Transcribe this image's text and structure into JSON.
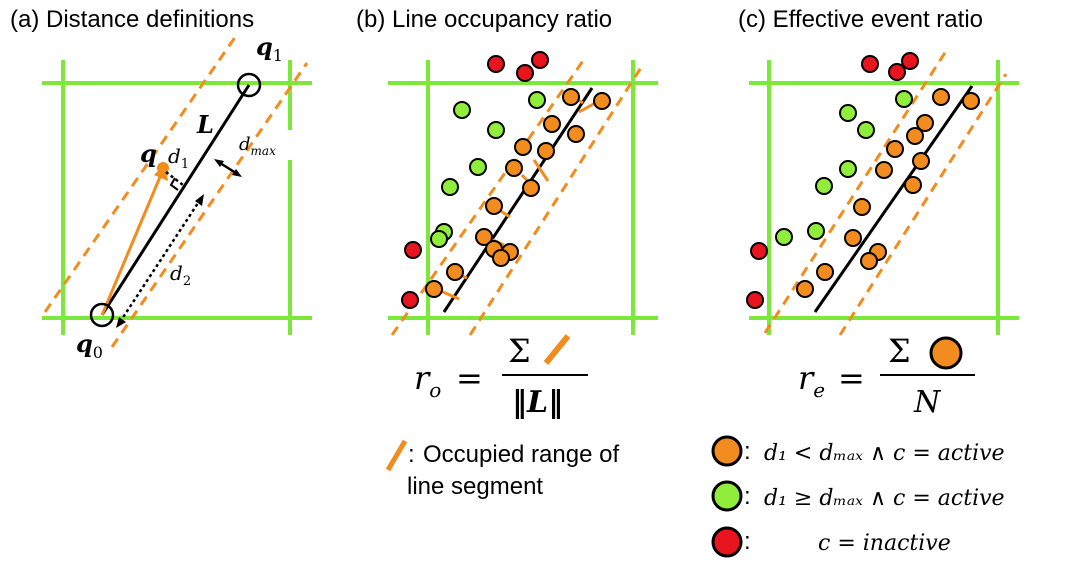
{
  "panels": [
    {
      "title": "(a) Distance definitions"
    },
    {
      "title": "(b) Line occupancy ratio"
    },
    {
      "title": "(c) Effective event ratio"
    }
  ],
  "panel_a": {
    "labels": {
      "q1_base": "q",
      "q1_sub": "1",
      "q0_base": "q",
      "q0_sub": "0",
      "q_base": "q",
      "L": "L",
      "d1_base": "d",
      "d1_sub": "1",
      "d2_base": "d",
      "d2_sub": "2",
      "dmax_base": "d",
      "dmax_sub": "max"
    }
  },
  "formula_b": {
    "lhs_base": "r",
    "lhs_sub": "o",
    "eq": "=",
    "sum": "Σ",
    "denominator": "‖L‖"
  },
  "formula_c": {
    "lhs_base": "r",
    "lhs_sub": "e",
    "eq": "=",
    "sum": "Σ",
    "denominator": "N"
  },
  "legend_b": {
    "colon": ":",
    "line1": "Occupied range of",
    "line2": "line segment"
  },
  "legend_c": [
    {
      "color": "#f28c1e",
      "colon": ":",
      "text": "d₁ < dₘₐₓ ∧ c = active"
    },
    {
      "color": "#90ee3a",
      "colon": ":",
      "text": "d₁ ≥ dₘₐₓ ∧ c = active"
    },
    {
      "color": "#e8141e",
      "colon": ":",
      "text": "c = inactive"
    }
  ],
  "colors": {
    "grid": "#7ce83a",
    "orange": "#f28c1e",
    "green": "#90ee3a",
    "red": "#e8141e",
    "black": "#000000"
  }
}
